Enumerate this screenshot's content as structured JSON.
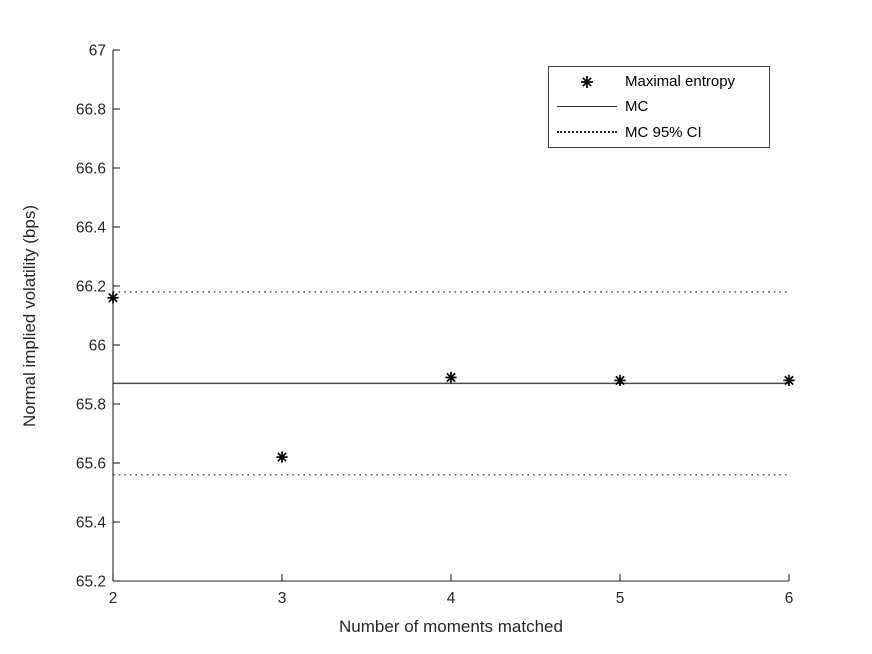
{
  "figure": {
    "background": "#ffffff",
    "axis_color": "#262626",
    "tick_label_color": "#262626",
    "marker_color": "#000000",
    "mc_line_color": "#4d4d4d",
    "ci_line_color": "#262626",
    "legend_border_color": "#404040"
  },
  "chart_data": {
    "type": "scatter",
    "title": "",
    "xlabel": "Number of moments matched",
    "ylabel": "Normal implied volatility (bps)",
    "xlim": [
      2,
      6
    ],
    "ylim": [
      65.2,
      67
    ],
    "x_ticks": [
      2,
      3,
      4,
      5,
      6
    ],
    "y_ticks": [
      65.2,
      65.4,
      65.6,
      65.8,
      66,
      66.2,
      66.4,
      66.6,
      66.8,
      67
    ],
    "grid": false,
    "legend_position": "top-right",
    "series": [
      {
        "name": "Maximal entropy",
        "type": "scatter",
        "marker": "asterisk",
        "x": [
          2,
          3,
          4,
          5,
          6
        ],
        "y": [
          66.16,
          65.62,
          65.89,
          65.88,
          65.88
        ]
      },
      {
        "name": "MC",
        "type": "hline",
        "line_style": "solid",
        "y": 65.87
      },
      {
        "name": "MC 95% CI",
        "type": "hline",
        "line_style": "dotted",
        "y": [
          65.56,
          66.18
        ]
      }
    ]
  },
  "legend": {
    "items": [
      {
        "label": "Maximal entropy",
        "marker": "asterisk"
      },
      {
        "label": "MC",
        "marker": "solid-line"
      },
      {
        "label": "MC 95% CI",
        "marker": "dotted-line"
      }
    ]
  }
}
